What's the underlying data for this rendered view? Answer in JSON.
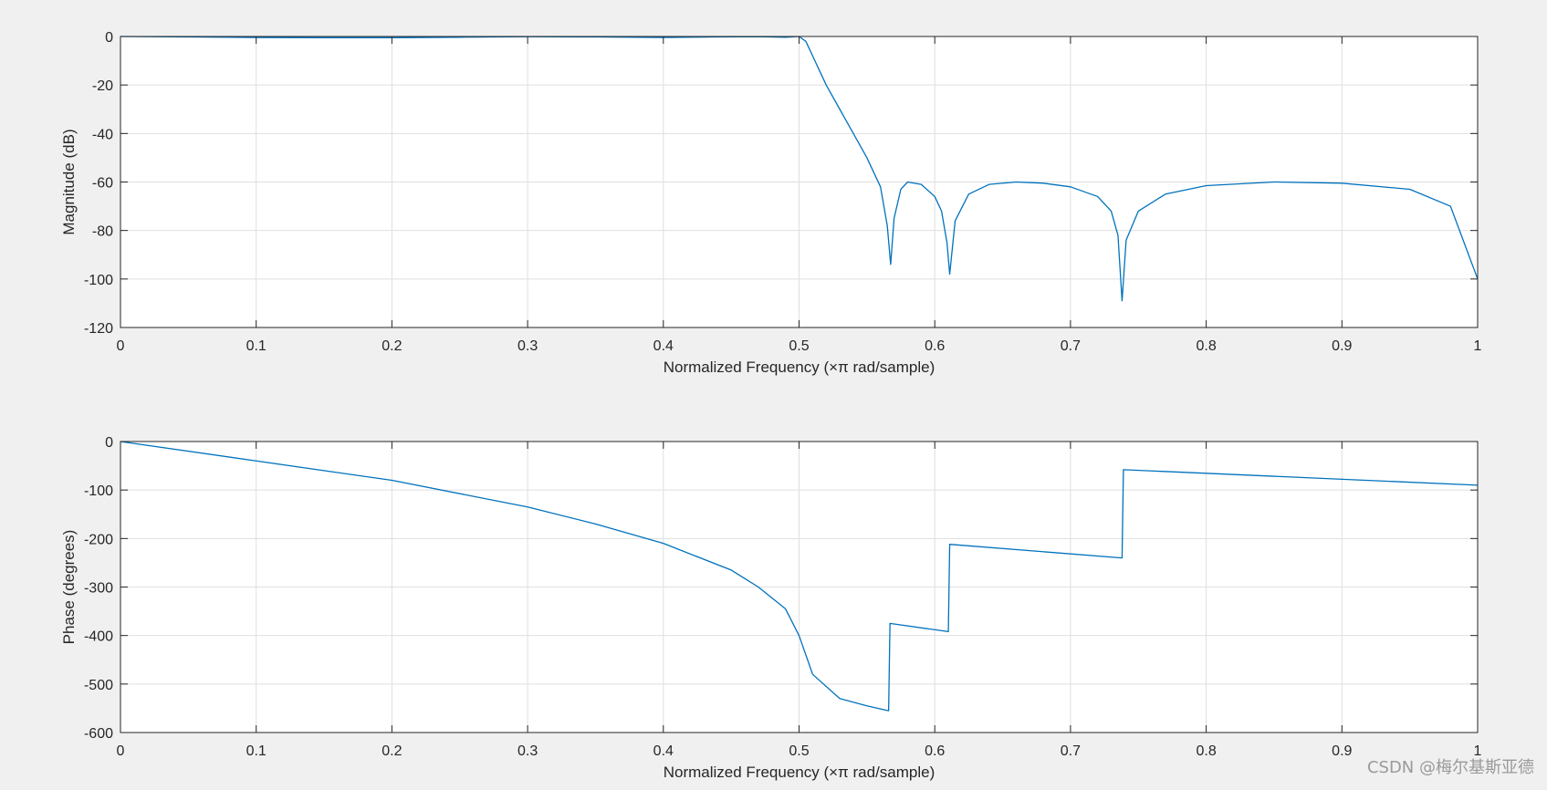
{
  "watermark": "CSDN @梅尔基斯亚德",
  "chart_data": [
    {
      "type": "line",
      "xlabel": "Normalized Frequency  (×π rad/sample)",
      "ylabel": "Magnitude (dB)",
      "xlim": [
        0,
        1
      ],
      "ylim": [
        -120,
        0
      ],
      "xticks": [
        0,
        0.1,
        0.2,
        0.3,
        0.4,
        0.5,
        0.6,
        0.7,
        0.8,
        0.9,
        1
      ],
      "xtick_labels": [
        "0",
        "0.1",
        "0.2",
        "0.3",
        "0.4",
        "0.5",
        "0.6",
        "0.7",
        "0.8",
        "0.9",
        "1"
      ],
      "yticks": [
        -120,
        -100,
        -80,
        -60,
        -40,
        -20,
        0
      ],
      "ytick_labels": [
        "-120",
        "-100",
        "-80",
        "-60",
        "-40",
        "-20",
        "0"
      ],
      "grid": true,
      "line_color": "#0072bd",
      "series": [
        {
          "x": [
            0,
            0.05,
            0.1,
            0.15,
            0.2,
            0.25,
            0.3,
            0.35,
            0.4,
            0.44,
            0.47,
            0.49,
            0.5,
            0.505,
            0.51,
            0.52,
            0.53,
            0.54,
            0.55,
            0.56,
            0.565,
            0.5675,
            0.57,
            0.575,
            0.58,
            0.59,
            0.6,
            0.605,
            0.609,
            0.611,
            0.615,
            0.625,
            0.64,
            0.66,
            0.68,
            0.7,
            0.72,
            0.73,
            0.735,
            0.738,
            0.741,
            0.75,
            0.77,
            0.8,
            0.85,
            0.9,
            0.95,
            0.98,
            1
          ],
          "y": [
            0,
            -0.2,
            -0.4,
            -0.5,
            -0.5,
            -0.3,
            -0.1,
            -0.2,
            -0.4,
            -0.2,
            -0.1,
            -0.3,
            0,
            -2,
            -8,
            -20,
            -30,
            -40,
            -50,
            -62,
            -78,
            -94,
            -75,
            -63,
            -60,
            -61,
            -66,
            -72,
            -85,
            -98,
            -76,
            -65,
            -61,
            -60,
            -60.5,
            -62,
            -66,
            -72,
            -82,
            -109,
            -84,
            -72,
            -65,
            -61.5,
            -60,
            -60.5,
            -63,
            -70,
            -100
          ]
        }
      ]
    },
    {
      "type": "line",
      "xlabel": "Normalized Frequency  (×π rad/sample)",
      "ylabel": "Phase (degrees)",
      "xlim": [
        0,
        1
      ],
      "ylim": [
        -600,
        0
      ],
      "xticks": [
        0,
        0.1,
        0.2,
        0.3,
        0.4,
        0.5,
        0.6,
        0.7,
        0.8,
        0.9,
        1
      ],
      "xtick_labels": [
        "0",
        "0.1",
        "0.2",
        "0.3",
        "0.4",
        "0.5",
        "0.6",
        "0.7",
        "0.8",
        "0.9",
        "1"
      ],
      "yticks": [
        -600,
        -500,
        -400,
        -300,
        -200,
        -100,
        0
      ],
      "ytick_labels": [
        "-600",
        "-500",
        "-400",
        "-300",
        "-200",
        "-100",
        "0"
      ],
      "grid": true,
      "line_color": "#0072bd",
      "series": [
        {
          "x": [
            0,
            0.1,
            0.2,
            0.3,
            0.35,
            0.4,
            0.45,
            0.47,
            0.49,
            0.5,
            0.51,
            0.53,
            0.55,
            0.566,
            0.567,
            0.61,
            0.611,
            0.738,
            0.739,
            1
          ],
          "y": [
            0,
            -40,
            -80,
            -135,
            -170,
            -210,
            -265,
            -300,
            -345,
            -400,
            -480,
            -530,
            -545,
            -555,
            -375,
            -392,
            -212,
            -240,
            -58,
            -90
          ]
        }
      ]
    }
  ]
}
